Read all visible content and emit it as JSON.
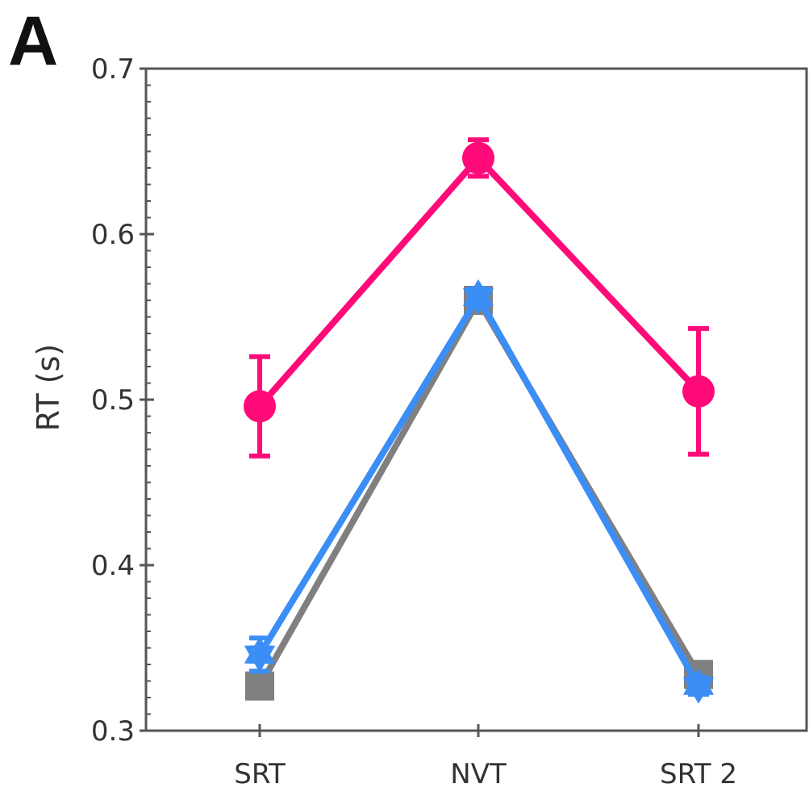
{
  "panel_label": "A",
  "chart_data": {
    "type": "line",
    "title": "",
    "xlabel": "",
    "ylabel": "RT (s)",
    "categories": [
      "SRT",
      "NVT",
      "SRT 2"
    ],
    "ylim": [
      0.3,
      0.7
    ],
    "yticks": [
      0.3,
      0.4,
      0.5,
      0.6,
      0.7
    ],
    "ytick_labels": [
      "0.3",
      "0.4",
      "0.5",
      "0.6",
      "0.7"
    ],
    "grid": false,
    "legend": false,
    "series": [
      {
        "color": "#808080",
        "marker": "square",
        "values": [
          0.327,
          0.56,
          0.334
        ],
        "errors": [
          0.0,
          0.004,
          0.004
        ]
      },
      {
        "color": "#3a8ef6",
        "marker": "star",
        "values": [
          0.346,
          0.562,
          0.327
        ],
        "errors": [
          0.01,
          0.005,
          0.005
        ]
      },
      {
        "color": "#ff0a78",
        "marker": "circle",
        "values": [
          0.496,
          0.646,
          0.505
        ],
        "errors": [
          0.03,
          0.011,
          0.038
        ]
      }
    ]
  }
}
